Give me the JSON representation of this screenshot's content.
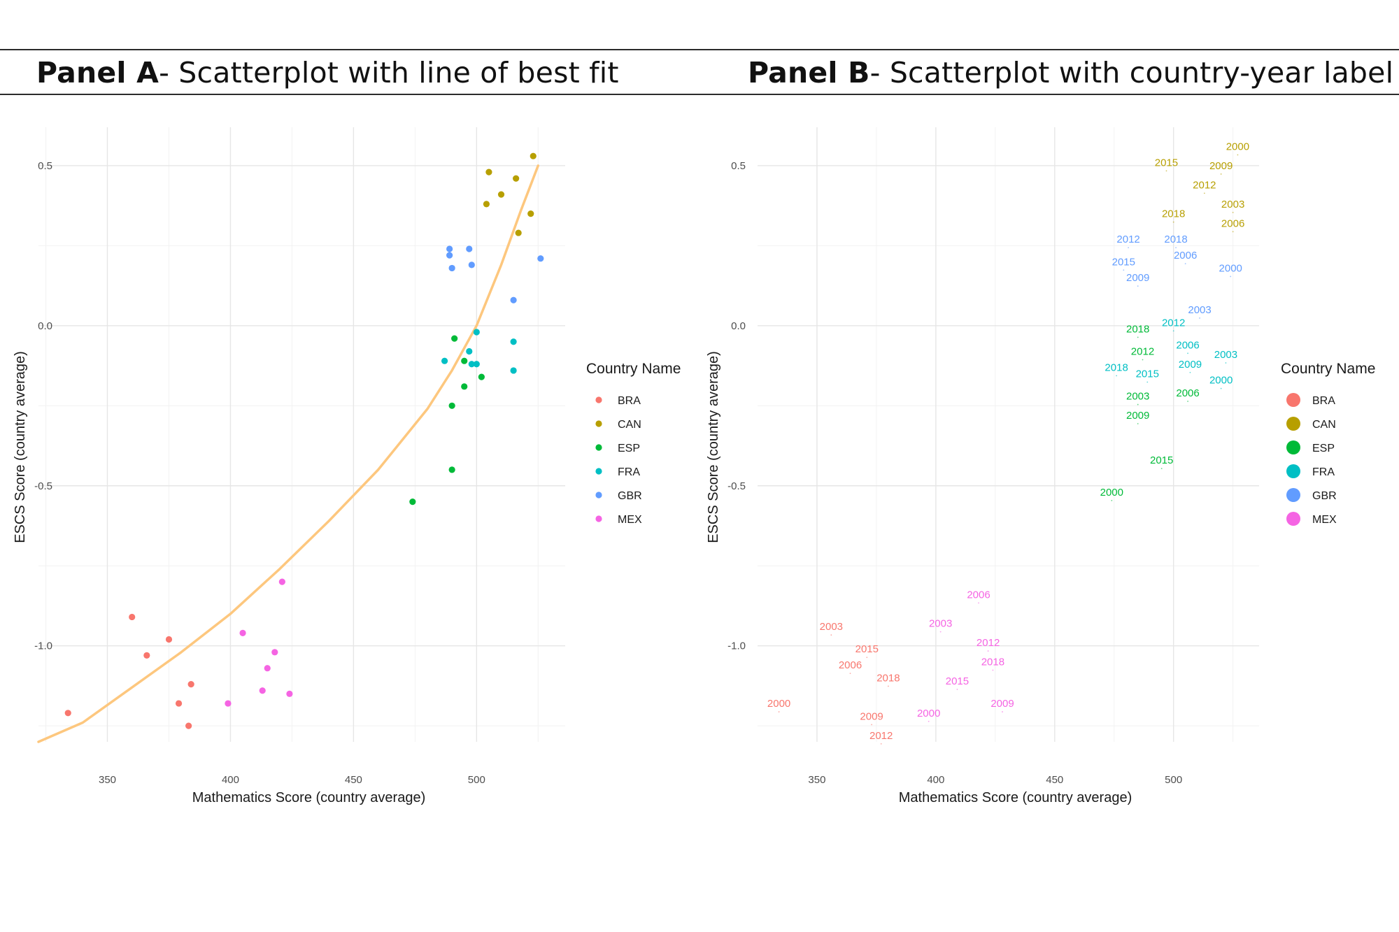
{
  "panel_a_title": {
    "bold": "Panel A",
    "rest": "- Scatterplot with line of best fit"
  },
  "panel_b_title": {
    "bold": "Panel B",
    "rest": "- Scatterplot with country-year label"
  },
  "colors": {
    "BRA": "#F8766D",
    "CAN": "#B79F00",
    "ESP": "#00BA38",
    "FRA": "#00BFC4",
    "GBR": "#619CFF",
    "MEX": "#F564E3",
    "fit": "#FDC77E"
  },
  "chart_data": [
    {
      "type": "scatter",
      "panel": "A",
      "xlabel": "Mathematics Score (country average)",
      "ylabel": "ESCS Score (country average)",
      "xlim": [
        322,
        536
      ],
      "ylim": [
        -1.3,
        0.62
      ],
      "xticks": [
        350,
        400,
        450,
        500
      ],
      "xtick_labels": [
        "350",
        "400",
        "450",
        "500"
      ],
      "yticks": [
        0.5,
        0.0,
        -0.5,
        -1.0
      ],
      "ytick_labels": [
        "0.5",
        "0.0",
        "-0.5",
        "-1.0"
      ],
      "grid": true,
      "legend": {
        "title": "Country Name",
        "position": "right"
      },
      "fit_line": {
        "x": [
          322,
          340,
          360,
          380,
          400,
          420,
          440,
          460,
          480,
          490,
          500,
          510,
          518,
          525
        ],
        "y": [
          -1.3,
          -1.24,
          -1.13,
          -1.02,
          -0.9,
          -0.76,
          -0.61,
          -0.45,
          -0.26,
          -0.14,
          0.0,
          0.19,
          0.36,
          0.5
        ]
      },
      "series": [
        {
          "name": "BRA",
          "points": [
            [
              334,
              -1.21
            ],
            [
              360,
              -0.91
            ],
            [
              366,
              -1.03
            ],
            [
              375,
              -0.98
            ],
            [
              379,
              -1.18
            ],
            [
              383,
              -1.25
            ],
            [
              384,
              -1.12
            ]
          ]
        },
        {
          "name": "CAN",
          "points": [
            [
              504,
              0.38
            ],
            [
              505,
              0.48
            ],
            [
              510,
              0.41
            ],
            [
              516,
              0.46
            ],
            [
              517,
              0.29
            ],
            [
              522,
              0.35
            ],
            [
              523,
              0.53
            ]
          ]
        },
        {
          "name": "ESP",
          "points": [
            [
              474,
              -0.55
            ],
            [
              490,
              -0.45
            ],
            [
              490,
              -0.25
            ],
            [
              491,
              -0.04
            ],
            [
              495,
              -0.11
            ],
            [
              495,
              -0.19
            ],
            [
              502,
              -0.16
            ]
          ]
        },
        {
          "name": "FRA",
          "points": [
            [
              487,
              -0.11
            ],
            [
              497,
              -0.08
            ],
            [
              498,
              -0.12
            ],
            [
              500,
              -0.12
            ],
            [
              500,
              -0.02
            ],
            [
              515,
              -0.05
            ],
            [
              515,
              -0.14
            ]
          ]
        },
        {
          "name": "GBR",
          "points": [
            [
              489,
              0.24
            ],
            [
              489,
              0.22
            ],
            [
              490,
              0.18
            ],
            [
              497,
              0.24
            ],
            [
              498,
              0.19
            ],
            [
              515,
              0.08
            ],
            [
              526,
              0.21
            ]
          ]
        },
        {
          "name": "MEX",
          "points": [
            [
              399,
              -1.18
            ],
            [
              405,
              -0.96
            ],
            [
              413,
              -1.14
            ],
            [
              415,
              -1.07
            ],
            [
              418,
              -1.02
            ],
            [
              421,
              -0.8
            ],
            [
              424,
              -1.15
            ]
          ]
        }
      ]
    },
    {
      "type": "scatter",
      "panel": "B",
      "xlabel": "Mathematics Score (country average)",
      "ylabel": "ESCS Score (country average)",
      "xlim": [
        325,
        536
      ],
      "ylim": [
        -1.3,
        0.62
      ],
      "xticks": [
        350,
        400,
        450,
        500
      ],
      "xtick_labels": [
        "350",
        "400",
        "450",
        "500"
      ],
      "yticks": [
        0.5,
        0.0,
        -0.5,
        -1.0
      ],
      "ytick_labels": [
        "0.5",
        "0.0",
        "-0.5",
        "-1.0"
      ],
      "grid": true,
      "legend": {
        "title": "Country Name",
        "position": "right"
      },
      "labels": [
        {
          "country": "BRA",
          "text": "2000",
          "x": 334,
          "y": -1.18
        },
        {
          "country": "BRA",
          "text": "2003",
          "x": 356,
          "y": -0.94
        },
        {
          "country": "BRA",
          "text": "2006",
          "x": 364,
          "y": -1.06
        },
        {
          "country": "BRA",
          "text": "2009",
          "x": 373,
          "y": -1.22
        },
        {
          "country": "BRA",
          "text": "2012",
          "x": 377,
          "y": -1.28
        },
        {
          "country": "BRA",
          "text": "2015",
          "x": 371,
          "y": -1.01
        },
        {
          "country": "BRA",
          "text": "2018",
          "x": 380,
          "y": -1.1
        },
        {
          "country": "CAN",
          "text": "2000",
          "x": 527,
          "y": 0.56
        },
        {
          "country": "CAN",
          "text": "2003",
          "x": 525,
          "y": 0.38
        },
        {
          "country": "CAN",
          "text": "2006",
          "x": 525,
          "y": 0.32
        },
        {
          "country": "CAN",
          "text": "2009",
          "x": 520,
          "y": 0.5
        },
        {
          "country": "CAN",
          "text": "2012",
          "x": 513,
          "y": 0.44
        },
        {
          "country": "CAN",
          "text": "2015",
          "x": 497,
          "y": 0.51
        },
        {
          "country": "CAN",
          "text": "2018",
          "x": 500,
          "y": 0.35
        },
        {
          "country": "ESP",
          "text": "2000",
          "x": 474,
          "y": -0.52
        },
        {
          "country": "ESP",
          "text": "2003",
          "x": 485,
          "y": -0.22
        },
        {
          "country": "ESP",
          "text": "2006",
          "x": 506,
          "y": -0.21
        },
        {
          "country": "ESP",
          "text": "2009",
          "x": 485,
          "y": -0.28
        },
        {
          "country": "ESP",
          "text": "2012",
          "x": 487,
          "y": -0.08
        },
        {
          "country": "ESP",
          "text": "2015",
          "x": 495,
          "y": -0.42
        },
        {
          "country": "ESP",
          "text": "2018",
          "x": 485,
          "y": -0.01
        },
        {
          "country": "FRA",
          "text": "2000",
          "x": 520,
          "y": -0.17
        },
        {
          "country": "FRA",
          "text": "2003",
          "x": 522,
          "y": -0.09
        },
        {
          "country": "FRA",
          "text": "2006",
          "x": 506,
          "y": -0.06
        },
        {
          "country": "FRA",
          "text": "2009",
          "x": 507,
          "y": -0.12
        },
        {
          "country": "FRA",
          "text": "2012",
          "x": 500,
          "y": 0.01
        },
        {
          "country": "FRA",
          "text": "2015",
          "x": 489,
          "y": -0.15
        },
        {
          "country": "FRA",
          "text": "2018",
          "x": 476,
          "y": -0.13
        },
        {
          "country": "GBR",
          "text": "2000",
          "x": 524,
          "y": 0.18
        },
        {
          "country": "GBR",
          "text": "2003",
          "x": 511,
          "y": 0.05
        },
        {
          "country": "GBR",
          "text": "2006",
          "x": 505,
          "y": 0.22
        },
        {
          "country": "GBR",
          "text": "2009",
          "x": 485,
          "y": 0.15
        },
        {
          "country": "GBR",
          "text": "2012",
          "x": 481,
          "y": 0.27
        },
        {
          "country": "GBR",
          "text": "2015",
          "x": 479,
          "y": 0.2
        },
        {
          "country": "GBR",
          "text": "2018",
          "x": 501,
          "y": 0.27
        },
        {
          "country": "MEX",
          "text": "2000",
          "x": 397,
          "y": -1.21
        },
        {
          "country": "MEX",
          "text": "2003",
          "x": 402,
          "y": -0.93
        },
        {
          "country": "MEX",
          "text": "2006",
          "x": 418,
          "y": -0.84
        },
        {
          "country": "MEX",
          "text": "2009",
          "x": 428,
          "y": -1.18
        },
        {
          "country": "MEX",
          "text": "2012",
          "x": 422,
          "y": -0.99
        },
        {
          "country": "MEX",
          "text": "2015",
          "x": 409,
          "y": -1.11
        },
        {
          "country": "MEX",
          "text": "2018",
          "x": 424,
          "y": -1.05
        }
      ]
    }
  ],
  "legend_items": [
    "BRA",
    "CAN",
    "ESP",
    "FRA",
    "GBR",
    "MEX"
  ]
}
